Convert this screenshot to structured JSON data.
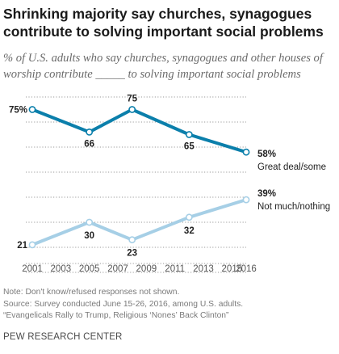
{
  "header": {
    "title": "Shrinking majority say churches, synagogues contribute to solving important social problems",
    "subtitle": "% of U.S. adults who say churches, synagogues and other houses of worship contribute _____ to solving important social problems"
  },
  "chart_data": {
    "type": "line",
    "x": [
      2001,
      2005,
      2008,
      2012,
      2016
    ],
    "xticks": [
      "2001",
      "2003",
      "2005",
      "2007",
      "2009",
      "2011",
      "2013",
      "2015",
      "2016"
    ],
    "ylim": [
      0,
      100
    ],
    "grid": true,
    "series": [
      {
        "name": "Great deal/some",
        "values": [
          75,
          66,
          75,
          65,
          58
        ],
        "labels": [
          "75%",
          "66",
          "75",
          "65",
          "58%"
        ],
        "color": "#0b7fab"
      },
      {
        "name": "Not much/nothing",
        "values": [
          21,
          30,
          23,
          32,
          39
        ],
        "labels": [
          "21",
          "30",
          "23",
          "32",
          "39%"
        ],
        "color": "#a6cfe6"
      }
    ]
  },
  "footer": {
    "note": "Note: Don't know/refused responses not shown.",
    "source": "Source: Survey conducted June 15-26, 2016, among U.S. adults.",
    "report": "“Evangelicals Rally to Trump, Religious ‘Nones’ Back Clinton”",
    "org": "PEW RESEARCH CENTER"
  }
}
